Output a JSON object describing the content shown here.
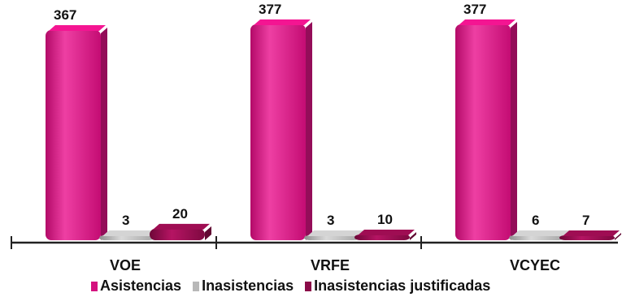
{
  "chart_data": {
    "type": "bar",
    "categories": [
      "VOE",
      "VRFE",
      "VCYEC"
    ],
    "series": [
      {
        "name": "Asistencias",
        "values": [
          367,
          377,
          377
        ],
        "color": "#d4127f"
      },
      {
        "name": "Inasistencias",
        "values": [
          3,
          3,
          6
        ],
        "color": "#b8b8b8"
      },
      {
        "name": "Inasistencias justificadas",
        "values": [
          20,
          10,
          7
        ],
        "color": "#8a0b48"
      }
    ],
    "title": "",
    "xlabel": "",
    "ylabel": "",
    "ylim": [
      0,
      377
    ],
    "grid": false,
    "legend_position": "bottom",
    "data_labels": true
  },
  "legend": {
    "items": [
      {
        "label": "Asistencias",
        "color": "#d4127f"
      },
      {
        "label": "Inasistencias",
        "color": "#b8b8b8"
      },
      {
        "label": "Inasistencias justificadas",
        "color": "#8a0b48"
      }
    ]
  }
}
